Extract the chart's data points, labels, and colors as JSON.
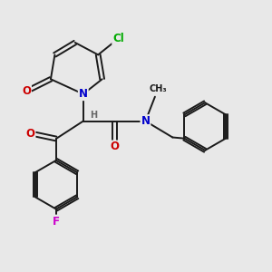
{
  "bg_color": "#e8e8e8",
  "bond_color": "#1a1a1a",
  "bond_width": 1.4,
  "atom_colors": {
    "O": "#cc0000",
    "N": "#0000cc",
    "Cl": "#00aa00",
    "F": "#cc00cc",
    "H": "#666666",
    "C": "#1a1a1a"
  },
  "font_size": 8.5,
  "figsize": [
    3.0,
    3.0
  ],
  "dpi": 100
}
